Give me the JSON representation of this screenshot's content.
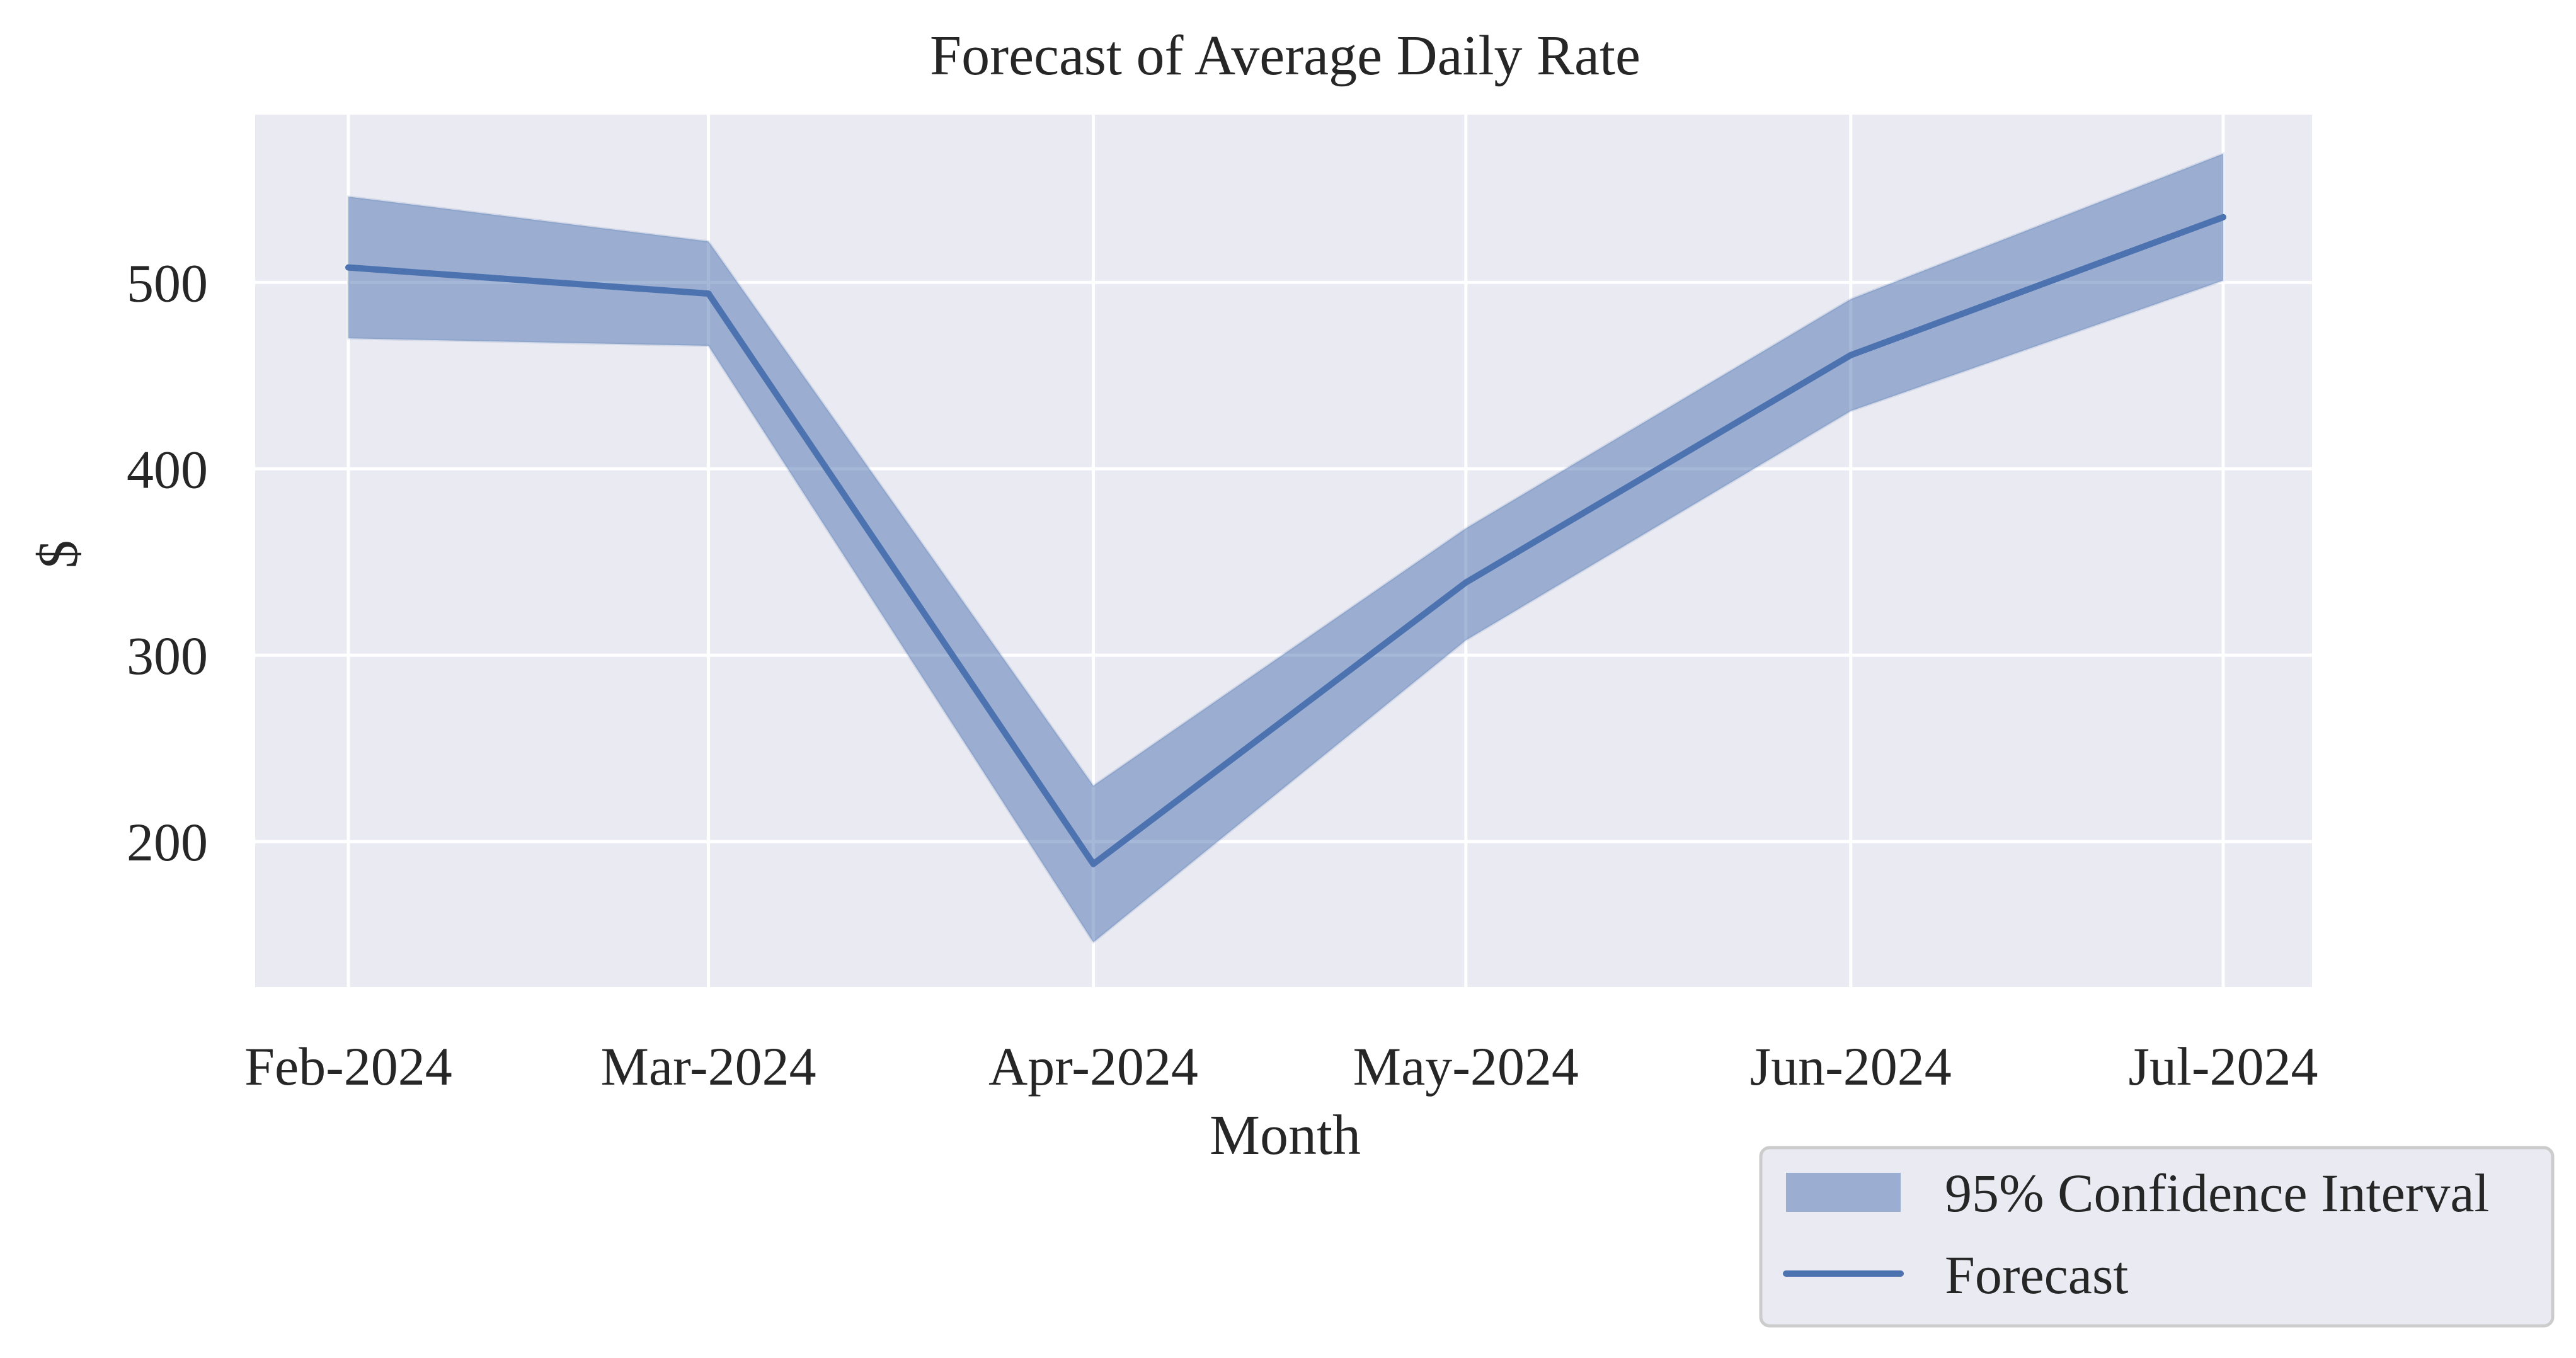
{
  "chart_data": {
    "type": "line",
    "title": "Forecast of Average Daily Rate",
    "xlabel": "Month",
    "ylabel": "$",
    "categories": [
      "Feb-2024",
      "Mar-2024",
      "Apr-2024",
      "May-2024",
      "Jun-2024",
      "Jul-2024"
    ],
    "x_dates": [
      "2024-02-01",
      "2024-03-01",
      "2024-04-01",
      "2024-05-01",
      "2024-06-01",
      "2024-07-01"
    ],
    "series": [
      {
        "name": "Forecast",
        "values": [
          508,
          494,
          188,
          339,
          461,
          535
        ]
      }
    ],
    "confidence_interval": {
      "name": "95% Confidence Interval",
      "lower": [
        470,
        466,
        146,
        308,
        431,
        501
      ],
      "upper": [
        546,
        522,
        230,
        368,
        491,
        569
      ]
    },
    "ylim": [
      122,
      590
    ],
    "yticks": [
      200,
      300,
      400,
      500
    ],
    "grid": true,
    "legend_position": "lower-right",
    "colors": {
      "line": "#4c72b0",
      "band": "#4c72b0",
      "axes_bg": "#eaeaf2",
      "grid": "#ffffff"
    }
  }
}
